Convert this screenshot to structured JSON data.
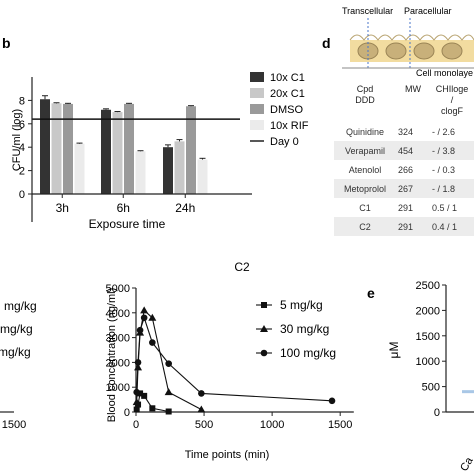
{
  "panels": {
    "b": "b",
    "d": "d",
    "e": "e"
  },
  "chart_data": [
    {
      "type": "bar",
      "id": "b",
      "title": "",
      "xlabel": "Exposure time",
      "ylabel": "CFU/ml (log)",
      "ylim": [
        0,
        10
      ],
      "yticks": [
        "0",
        "2",
        "4",
        "6",
        "8",
        "10"
      ],
      "categories": [
        "3h",
        "6h",
        "24h"
      ],
      "series": [
        {
          "name": "10x C1",
          "color": "#333333",
          "values": [
            8.1,
            7.2,
            4.0
          ],
          "errors": [
            0.3,
            0.08,
            0.2
          ]
        },
        {
          "name": "20x C1",
          "color": "#c8c8c8",
          "values": [
            7.75,
            7.0,
            4.5
          ],
          "errors": [
            0.05,
            0.05,
            0.15
          ]
        },
        {
          "name": "DMSO",
          "color": "#9a9a9a",
          "values": [
            7.7,
            7.7,
            7.5
          ],
          "errors": [
            0.05,
            0.05,
            0.05
          ]
        },
        {
          "name": "10x RIF",
          "color": "#ebebeb",
          "values": [
            4.3,
            3.65,
            2.95
          ],
          "errors": [
            0.05,
            0.05,
            0.1
          ]
        }
      ],
      "reference_line": {
        "name": "Day 0",
        "value": 6.4
      },
      "legend": "right"
    },
    {
      "type": "line",
      "id": "c2",
      "title": "C2",
      "xlabel": "Time points (min)",
      "ylabel": "Blood concentration (ng/ml)",
      "xlim": [
        0,
        1600
      ],
      "ylim": [
        0,
        5000
      ],
      "xticks": [
        "0",
        "500",
        "1000",
        "1500"
      ],
      "yticks": [
        "0",
        "1000",
        "2000",
        "3000",
        "4000",
        "5000"
      ],
      "series": [
        {
          "name": "5 mg/kg",
          "marker": "square",
          "x": [
            5,
            15,
            30,
            60,
            120,
            240
          ],
          "y": [
            100,
            300,
            750,
            650,
            150,
            20
          ]
        },
        {
          "name": "30 mg/kg",
          "marker": "triangle",
          "x": [
            5,
            15,
            30,
            60,
            120,
            240,
            480
          ],
          "y": [
            400,
            1800,
            3200,
            4100,
            3800,
            800,
            100
          ]
        },
        {
          "name": "100 mg/kg",
          "marker": "circle",
          "x": [
            5,
            15,
            30,
            60,
            120,
            240,
            480,
            1440
          ],
          "y": [
            800,
            2000,
            3300,
            3800,
            2800,
            1950,
            750,
            450
          ]
        }
      ],
      "legend": "right"
    },
    {
      "type": "line",
      "id": "c1-partial",
      "title": "",
      "xticks_visible": [
        "1500"
      ],
      "legend_partial": [
        "mg/kg",
        "mg/kg",
        "mg/kg"
      ]
    },
    {
      "type": "bar",
      "id": "e",
      "title": "",
      "ylabel": "μM",
      "ylim": [
        0,
        2500
      ],
      "yticks": [
        "0",
        "500",
        "1000",
        "1500",
        "2000",
        "2500"
      ],
      "categories_partial": [
        "Ca"
      ],
      "values": [
        430
      ]
    }
  ],
  "diagram": {
    "transcellular": "Transcellular",
    "paracellular": "Paracellular",
    "monolayer": "Cell monolaye"
  },
  "table": {
    "headers": [
      "Cpd\nDDD",
      "MW",
      "CHIloge\n/\nclogF"
    ],
    "rows": [
      [
        "Quinidine",
        "324",
        "- / 2.6"
      ],
      [
        "Verapamil",
        "454",
        "- / 3.8"
      ],
      [
        "Atenolol",
        "266",
        "- / 0.3"
      ],
      [
        "Metoprolol",
        "267",
        "- / 1.8"
      ],
      [
        "C1",
        "291",
        "0.5 / 1"
      ],
      [
        "C2",
        "291",
        "0.4 / 1"
      ]
    ]
  }
}
